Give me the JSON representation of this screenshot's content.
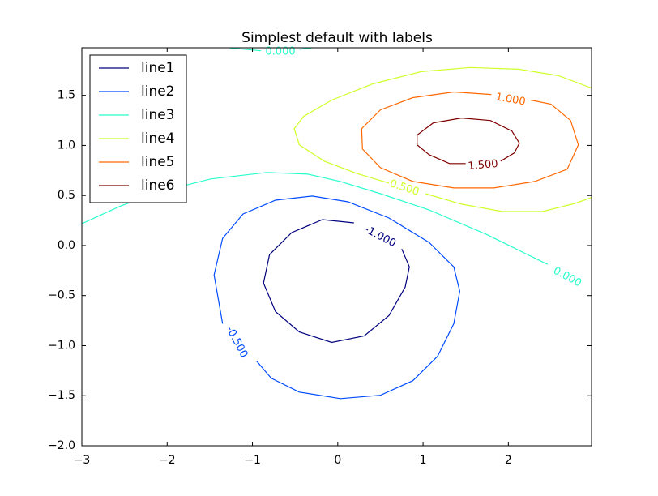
{
  "chart_data": {
    "type": "contour",
    "title": "Simplest default with labels",
    "xlim": [
      -3,
      2.975
    ],
    "ylim": [
      -2,
      1.975
    ],
    "xticks": [
      {
        "value": -3,
        "label": "−3"
      },
      {
        "value": -2,
        "label": "−2"
      },
      {
        "value": -1,
        "label": "−1"
      },
      0,
      1,
      2
    ],
    "yticks": [
      {
        "value": -2,
        "label": "−2.0"
      },
      {
        "value": -1.5,
        "label": "−1.5"
      },
      {
        "value": -1,
        "label": "−1.0"
      },
      {
        "value": -0.5,
        "label": "−0.5"
      },
      {
        "value": 0,
        "label": "0.0"
      },
      {
        "value": 0.5,
        "label": "0.5"
      },
      {
        "value": 1,
        "label": "1.0"
      },
      {
        "value": 1.5,
        "label": "1.5"
      }
    ],
    "legend": "upper left",
    "series": [
      {
        "name": "line1",
        "color": "#00007f",
        "level": -1.0,
        "value_labels": [
          "-1.000"
        ],
        "x": [
          0.19,
          -0.18,
          -0.54,
          -0.8,
          -0.87,
          -0.73,
          -0.45,
          -0.07,
          0.31,
          0.6,
          0.79,
          0.84,
          0.75
        ],
        "y": [
          0.226,
          0.259,
          0.129,
          -0.091,
          -0.375,
          -0.66,
          -0.863,
          -0.968,
          -0.903,
          -0.7,
          -0.416,
          -0.213,
          -0.034
        ]
      },
      {
        "name": "line2",
        "color": "#004cff",
        "level": -0.5,
        "value_labels": [
          "-0.500"
        ],
        "x": [
          -1.35,
          -1.45,
          -1.35,
          -1.11,
          -0.73,
          -0.3,
          0.12,
          0.6,
          1.07,
          1.36,
          1.43,
          1.36,
          1.17,
          0.88,
          0.5,
          0.03,
          -0.45,
          -0.78,
          -0.95
        ],
        "y": [
          -0.781,
          -0.294,
          0.072,
          0.315,
          0.453,
          0.494,
          0.437,
          0.275,
          0.031,
          -0.213,
          -0.456,
          -0.781,
          -1.106,
          -1.35,
          -1.496,
          -1.529,
          -1.464,
          -1.326,
          -1.155
        ]
      },
      {
        "name": "line3",
        "color": "#29ffce",
        "level": 0.0,
        "value_labels": [
          "0.000",
          "0.000"
        ],
        "x": [
          -1.28,
          -0.9,
          null,
          -0.45,
          -0.3,
          null,
          -3.0,
          -2.54,
          -2.06,
          -1.49,
          -0.83,
          -0.35,
          0.03,
          0.5,
          1.07,
          1.74,
          2.46,
          null,
          2.92
        ],
        "y": [
          1.975,
          1.945,
          null,
          1.96,
          1.975,
          null,
          0.218,
          0.397,
          0.543,
          0.665,
          0.73,
          0.713,
          0.64,
          0.518,
          0.356,
          0.112,
          -0.188,
          null,
          -0.375
        ]
      },
      {
        "name": "line4",
        "color": "#ceff29",
        "level": 0.5,
        "value_labels": [
          "0.500"
        ],
        "x": [
          2.97,
          2.59,
          2.12,
          1.55,
          0.98,
          0.41,
          -0.07,
          -0.4,
          -0.51,
          -0.45,
          -0.16,
          0.22,
          0.6,
          null,
          1.03,
          1.45,
          1.93,
          2.4,
          2.78,
          2.97
        ],
        "y": [
          1.574,
          1.696,
          1.761,
          1.778,
          1.737,
          1.615,
          1.453,
          1.29,
          1.168,
          1.006,
          0.843,
          0.721,
          0.624,
          null,
          0.518,
          0.413,
          0.34,
          0.34,
          0.421,
          0.478
        ]
      },
      {
        "name": "line5",
        "color": "#ff6800",
        "level": 1.0,
        "value_labels": [
          "1.000"
        ],
        "x": [
          1.8,
          1.36,
          0.88,
          0.5,
          0.28,
          0.29,
          0.5,
          0.88,
          1.36,
          1.83,
          2.31,
          2.69,
          2.82,
          2.73,
          2.5,
          2.26
        ],
        "y": [
          1.509,
          1.534,
          1.477,
          1.355,
          1.168,
          0.965,
          0.778,
          0.64,
          0.575,
          0.575,
          0.64,
          0.762,
          1.006,
          1.249,
          1.412,
          1.453
        ]
      },
      {
        "name": "line6",
        "color": "#7f0000",
        "level": 1.5,
        "value_labels": [
          "1.500"
        ],
        "x": [
          1.91,
          2.07,
          2.13,
          2.04,
          1.79,
          1.45,
          1.12,
          0.93,
          0.93,
          1.07,
          1.31,
          1.5
        ],
        "y": [
          0.843,
          0.925,
          1.022,
          1.144,
          1.249,
          1.274,
          1.225,
          1.103,
          1.006,
          0.908,
          0.819,
          0.819
        ]
      }
    ]
  }
}
